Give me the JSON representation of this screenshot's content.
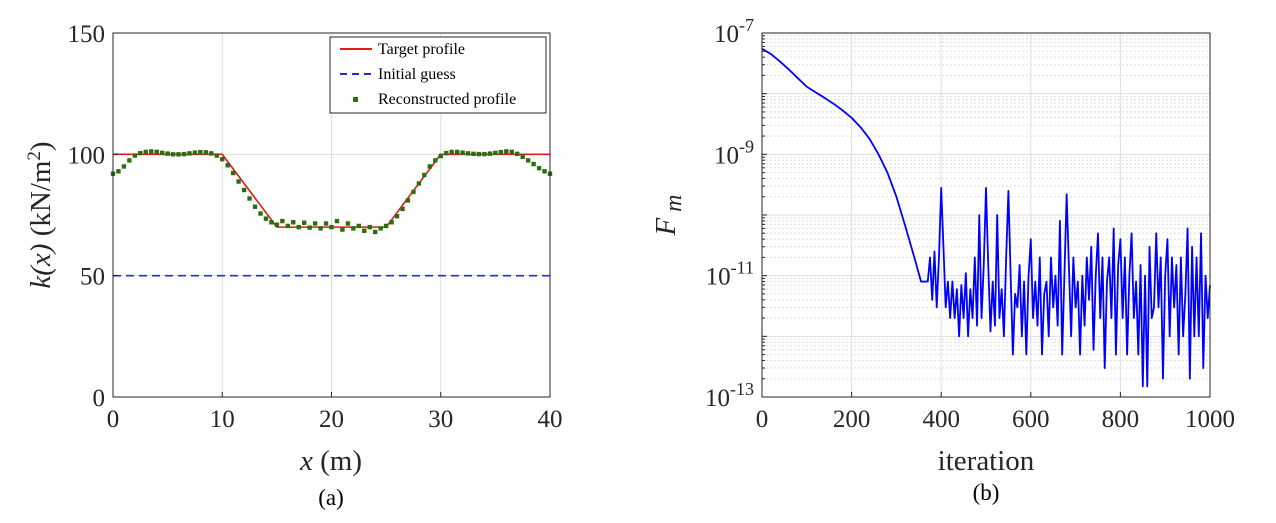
{
  "colors": {
    "target": "#e41a1c",
    "initial": "#1f2fd6",
    "reconstructed": "#2a6f0f",
    "convergence": "#0000ff",
    "grid": "#dedede",
    "axis": "#262626"
  },
  "chart_data": [
    {
      "type": "line",
      "caption": "(a)",
      "xlabel_var": "x",
      "xlabel_unit": " (m)",
      "ylabel_var": "k(x)",
      "ylabel_unit_pre": " (kN/m",
      "ylabel_unit_sup": "2",
      "ylabel_unit_post": ")",
      "xlim": [
        0,
        40
      ],
      "ylim": [
        0,
        150
      ],
      "xticks": [
        0,
        10,
        20,
        30,
        40
      ],
      "yticks": [
        0,
        50,
        100,
        150
      ],
      "grid": true,
      "legend": "top-right",
      "series": [
        {
          "name": "Target profile",
          "style": "solid",
          "x": [
            0,
            10,
            15,
            25,
            30,
            40
          ],
          "y": [
            100,
            100,
            70,
            70,
            100,
            100
          ]
        },
        {
          "name": "Initial guess",
          "style": "dashed",
          "x": [
            0,
            40
          ],
          "y": [
            50,
            50
          ]
        },
        {
          "name": "Reconstructed profile",
          "style": "markers",
          "x": [
            0,
            0.5,
            1,
            1.5,
            2,
            2.5,
            3,
            3.5,
            4,
            4.5,
            5,
            5.5,
            6,
            6.5,
            7,
            7.5,
            8,
            8.5,
            9,
            9.5,
            10,
            10.5,
            11,
            11.5,
            12,
            12.5,
            13,
            13.5,
            14,
            14.5,
            15,
            15.5,
            16,
            16.5,
            17,
            17.5,
            18,
            18.5,
            19,
            19.5,
            20,
            20.5,
            21,
            21.5,
            22,
            22.5,
            23,
            23.5,
            24,
            24.5,
            25,
            25.5,
            26,
            26.5,
            27,
            27.5,
            28,
            28.5,
            29,
            29.5,
            30,
            30.5,
            31,
            31.5,
            32,
            32.5,
            33,
            33.5,
            34,
            34.5,
            35,
            35.5,
            36,
            36.5,
            37,
            37.5,
            38,
            38.5,
            39,
            39.5,
            40
          ],
          "y": [
            92,
            93,
            95,
            97.5,
            99.5,
            100.5,
            101,
            101.2,
            101,
            100.6,
            100.3,
            100,
            100,
            100.1,
            100.4,
            100.7,
            100.9,
            100.8,
            100.4,
            99.5,
            98,
            95.5,
            92.3,
            88.8,
            85.3,
            81.8,
            78.4,
            75.6,
            73.5,
            72,
            71,
            72.5,
            70.5,
            72,
            70,
            71.8,
            69.8,
            71.5,
            69.5,
            71.5,
            70,
            72.5,
            69,
            71.5,
            69.5,
            70.5,
            68.5,
            70,
            68,
            69.5,
            70.5,
            72,
            74.5,
            77.5,
            81,
            84.5,
            88,
            91.5,
            95,
            97.5,
            99.3,
            100.5,
            101,
            101,
            100.7,
            100.4,
            100.2,
            100.1,
            100.1,
            100.3,
            100.6,
            100.9,
            101.2,
            101,
            100.2,
            99,
            97.5,
            96,
            94.3,
            93,
            92
          ]
        }
      ]
    },
    {
      "type": "line",
      "caption": "(b)",
      "xlabel": "iteration",
      "ylabel_var": "F",
      "ylabel_sub": "m",
      "xlim": [
        0,
        1000
      ],
      "ylim": [
        1e-13,
        1e-07
      ],
      "yscale": "log",
      "xticks": [
        0,
        200,
        400,
        600,
        800,
        1000
      ],
      "yticks_exp": [
        -13,
        -11,
        -9,
        -7
      ],
      "grid": true,
      "series": [
        {
          "x": [
            0,
            20,
            40,
            60,
            80,
            100,
            120,
            140,
            160,
            180,
            200,
            220,
            240,
            260,
            280,
            300,
            320,
            340,
            355,
            370,
            375,
            380,
            385,
            390,
            395,
            400,
            405,
            410,
            415,
            420,
            425,
            430,
            435,
            440,
            445,
            450,
            455,
            460,
            465,
            470,
            475,
            480,
            485,
            490,
            495,
            500,
            505,
            510,
            515,
            520,
            525,
            530,
            535,
            540,
            545,
            550,
            555,
            560,
            565,
            570,
            575,
            580,
            585,
            590,
            595,
            600,
            605,
            610,
            615,
            620,
            625,
            630,
            635,
            640,
            645,
            650,
            655,
            660,
            665,
            670,
            675,
            680,
            685,
            690,
            695,
            700,
            705,
            710,
            715,
            720,
            725,
            730,
            735,
            740,
            745,
            750,
            755,
            760,
            765,
            770,
            775,
            780,
            785,
            790,
            795,
            800,
            805,
            810,
            815,
            820,
            825,
            830,
            835,
            840,
            845,
            850,
            855,
            860,
            865,
            870,
            875,
            880,
            885,
            890,
            895,
            900,
            905,
            910,
            915,
            920,
            925,
            930,
            935,
            940,
            945,
            950,
            955,
            960,
            965,
            970,
            975,
            980,
            985,
            990,
            995,
            1000
          ],
          "y": [
            5.5e-08,
            4.5e-08,
            3.4e-08,
            2.5e-08,
            1.8e-08,
            1.3e-08,
            1.05e-08,
            8.5e-09,
            6.8e-09,
            5.3e-09,
            4e-09,
            2.8e-09,
            1.8e-09,
            1e-09,
            5e-10,
            2e-10,
            6.5e-11,
            2e-11,
            8e-12,
            8e-12,
            2e-11,
            4e-12,
            2.5e-11,
            3e-12,
            2e-11,
            2.8e-10,
            3e-11,
            3e-12,
            8e-12,
            2e-12,
            8e-12,
            2e-12,
            6e-12,
            1e-12,
            7e-12,
            2e-12,
            1.1e-11,
            1e-12,
            6e-12,
            2e-12,
            2e-11,
            1.5e-12,
            1e-10,
            2e-12,
            1.5e-11,
            2.8e-10,
            1.5e-11,
            1.2e-12,
            8e-12,
            1.5e-12,
            1e-10,
            2e-12,
            6e-12,
            1e-12,
            2e-11,
            2.5e-10,
            1e-11,
            5e-13,
            5e-12,
            3e-12,
            1.5e-11,
            1e-12,
            8e-12,
            5e-13,
            1e-11,
            4e-11,
            2e-12,
            8e-12,
            1.5e-12,
            2e-11,
            5e-13,
            5e-12,
            8e-12,
            1e-12,
            2e-11,
            3e-12,
            1e-11,
            1.5e-12,
            8e-11,
            5e-13,
            1e-11,
            2.2e-10,
            1.5e-11,
            1e-12,
            2e-11,
            3e-12,
            8e-12,
            5e-13,
            1e-11,
            1.5e-12,
            2e-11,
            4e-12,
            3e-11,
            6e-13,
            1e-11,
            5e-11,
            2e-12,
            2e-11,
            3e-13,
            8e-12,
            2e-11,
            2e-12,
            6e-11,
            5e-13,
            1.5e-11,
            4e-11,
            2e-12,
            2e-11,
            5e-13,
            1e-11,
            5e-11,
            2e-12,
            8e-12,
            5e-13,
            1.5e-11,
            1.5e-13,
            1e-11,
            1.5e-13,
            3e-11,
            2e-12,
            3e-12,
            5e-11,
            3e-12,
            2e-11,
            2e-13,
            1e-11,
            4e-11,
            1e-12,
            2e-11,
            3e-12,
            1.5e-11,
            5e-13,
            2e-11,
            1e-12,
            5e-12,
            6e-11,
            2e-13,
            3e-11,
            1e-12,
            2e-11,
            1e-12,
            5e-11,
            3e-13,
            1e-11,
            2e-12,
            7e-12
          ]
        }
      ]
    }
  ]
}
